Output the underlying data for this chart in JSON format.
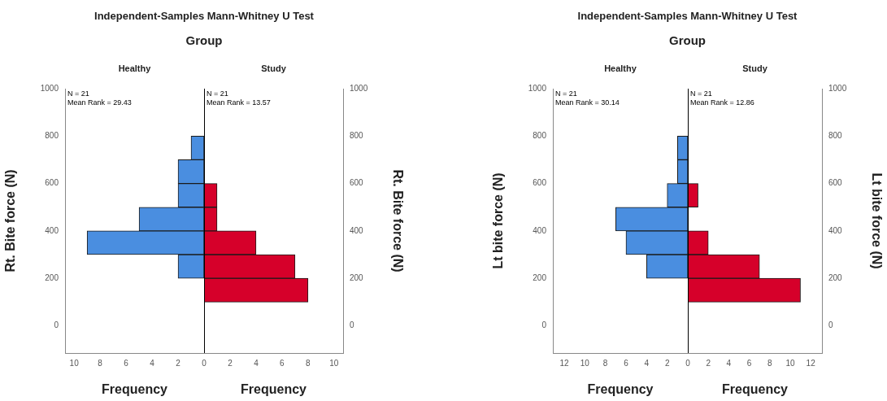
{
  "chart_data": [
    {
      "type": "histogram",
      "orientation": "horizontal",
      "title": "Independent-Samples Mann-Whitney U Test",
      "subtitle": "Group",
      "xlabel": "Frequency",
      "ylabel": "Rt. Bite force (N)",
      "annotations": [
        "N = 21",
        "Mean Rank = 29.43"
      ],
      "bins": [
        100,
        200,
        300,
        400,
        500,
        600,
        700,
        800
      ],
      "series": [
        {
          "name": "Healthy",
          "color": "#4a8ee0",
          "values": [
            0,
            2,
            9,
            5,
            2,
            2,
            1
          ]
        }
      ],
      "xlim": [
        10.7,
        0
      ],
      "xticks": [
        0,
        2,
        4,
        6,
        8,
        10
      ],
      "ylim": [
        -115,
        1000
      ],
      "yticks": [
        0,
        200,
        400,
        600,
        800,
        1000
      ],
      "grid": false,
      "legend": false
    },
    {
      "type": "histogram",
      "orientation": "horizontal",
      "xlabel": "Frequency",
      "ylabel": "Rt. Bite force (N)",
      "annotations": [
        "N = 21",
        "Mean Rank = 13.57"
      ],
      "bins": [
        100,
        200,
        300,
        400,
        500,
        600,
        700,
        800
      ],
      "series": [
        {
          "name": "Study",
          "color": "#d6002a",
          "values": [
            8,
            7,
            4,
            1,
            1,
            0,
            0
          ]
        }
      ],
      "xlim": [
        0,
        10.7
      ],
      "xticks": [
        {
          "value": 0,
          "label": null
        },
        2,
        4,
        6,
        8,
        10
      ],
      "ylim": [
        -115,
        1000
      ],
      "yticks": [
        0,
        200,
        400,
        600,
        800,
        1000
      ],
      "grid": false,
      "legend": false
    },
    {
      "type": "histogram",
      "orientation": "horizontal",
      "title": "Independent-Samples Mann-Whitney U Test",
      "subtitle": "Group",
      "xlabel": "Frequency",
      "ylabel": "Lt bite force (N)",
      "annotations": [
        "N = 21",
        "Mean Rank = 30.14"
      ],
      "bins": [
        100,
        200,
        300,
        400,
        500,
        600,
        700,
        800
      ],
      "series": [
        {
          "name": "Healthy",
          "color": "#4a8ee0",
          "values": [
            0,
            4,
            6,
            7,
            2,
            1,
            1
          ]
        }
      ],
      "xlim": [
        13.1,
        0
      ],
      "xticks": [
        0,
        2,
        4,
        6,
        8,
        10,
        12
      ],
      "ylim": [
        -115,
        1000
      ],
      "yticks": [
        0,
        200,
        400,
        600,
        800,
        1000
      ],
      "grid": false,
      "legend": false
    },
    {
      "type": "histogram",
      "orientation": "horizontal",
      "xlabel": "Frequency",
      "ylabel": "Lt bite force (N)",
      "annotations": [
        "N = 21",
        "Mean Rank = 12.86"
      ],
      "bins": [
        100,
        200,
        300,
        400,
        500,
        600,
        700,
        800
      ],
      "series": [
        {
          "name": "Study",
          "color": "#d6002a",
          "values": [
            11,
            7,
            2,
            0,
            1,
            0,
            0
          ]
        }
      ],
      "xlim": [
        0,
        13.1
      ],
      "xticks": [
        {
          "value": 0,
          "label": null
        },
        2,
        4,
        6,
        8,
        10,
        12
      ],
      "ylim": [
        -115,
        1000
      ],
      "yticks": [
        0,
        200,
        400,
        600,
        800,
        1000
      ],
      "grid": false,
      "legend": false
    }
  ]
}
